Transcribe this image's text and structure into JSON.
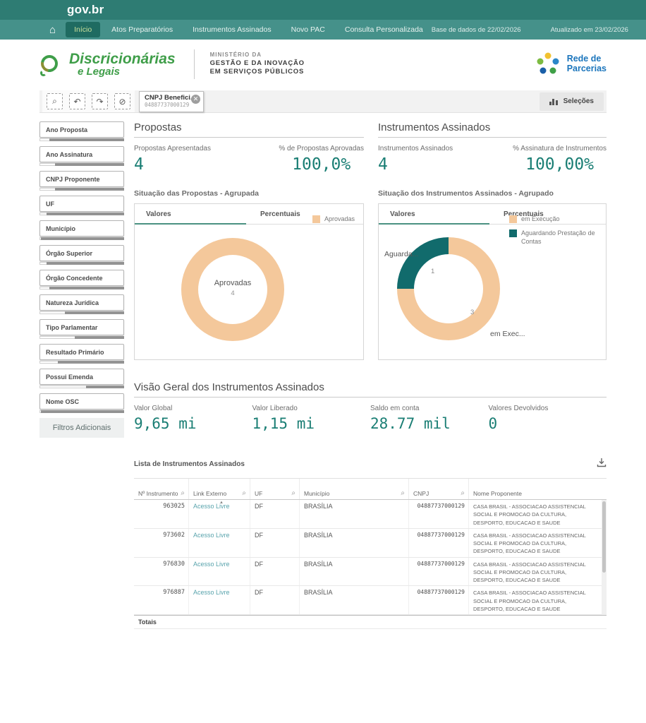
{
  "topbar": {
    "brand": "gov.br",
    "bg": "#2e7c73"
  },
  "navbar": {
    "bg": "#45918a",
    "items": [
      {
        "label": "Início",
        "active": true
      },
      {
        "label": "Atos Preparatórios",
        "active": false
      },
      {
        "label": "Instrumentos Assinados",
        "active": false
      },
      {
        "label": "Novo PAC",
        "active": false
      },
      {
        "label": "Consulta Personalizada",
        "active": false
      }
    ],
    "meta": [
      "Base de dados de 22/02/2026",
      "Atualizado em 23/02/2026"
    ]
  },
  "header": {
    "logo_line1": "Discricionárias",
    "logo_line2": "e Legais",
    "ministry": [
      "MINISTÉRIO DA",
      "GESTÃO E DA INOVAÇÃO",
      "EM SERVIÇOS PÚBLICOS"
    ],
    "partner_line1": "Rede de",
    "partner_line2": "Parcerias"
  },
  "toolbar": {
    "tools": [
      {
        "icon": "search-icon"
      },
      {
        "icon": "step-back-icon"
      },
      {
        "icon": "step-forward-icon"
      },
      {
        "icon": "clear-selections-icon"
      }
    ],
    "chip": {
      "title": "CNPJ Benefici...",
      "value": "04887737000129",
      "close_icon": "close-icon"
    },
    "selections_label": "Seleções"
  },
  "sidebar": {
    "filters": [
      {
        "label": "Ano Proposta",
        "state": 0.12
      },
      {
        "label": "Ano Assinatura",
        "state": 0.18
      },
      {
        "label": "CNPJ Proponente",
        "state": 0.18
      },
      {
        "label": "UF",
        "state": 0.08
      },
      {
        "label": "Município",
        "state": 0.02
      },
      {
        "label": "Órgão Superior",
        "state": 0.08
      },
      {
        "label": "Órgão Concedente",
        "state": 0.12
      },
      {
        "label": "Natureza Jurídica",
        "state": 0.3
      },
      {
        "label": "Tipo Parlamentar",
        "state": 0.42
      },
      {
        "label": "Resultado Primário",
        "state": 0.22
      },
      {
        "label": "Possui Emenda",
        "state": 0.55
      },
      {
        "label": "Nome OSC",
        "state": 0.02
      }
    ],
    "more_button": "Filtros Adicionais"
  },
  "sections": {
    "propostas": {
      "title": "Propostas",
      "kpis": [
        {
          "label": "Propostas Apresentadas",
          "value": "4"
        },
        {
          "label": "% de Propostas Aprovadas",
          "value": "100,0%"
        }
      ]
    },
    "instrumentos": {
      "title": "Instrumentos Assinados",
      "kpis": [
        {
          "label": "Instrumentos Assinados",
          "value": "4"
        },
        {
          "label": "% Assinatura de Instrumentos",
          "value": "100,00%"
        }
      ]
    },
    "visao_geral": {
      "title": "Visão Geral dos Instrumentos Assinados",
      "kpis": [
        {
          "label": "Valor Global",
          "value": "9,65 mi"
        },
        {
          "label": "Valor Liberado",
          "value": "1,15 mi"
        },
        {
          "label": "Saldo em conta",
          "value": "28.77 mil"
        },
        {
          "label": "Valores Devolvidos",
          "value": "0"
        }
      ]
    }
  },
  "charts": [
    {
      "title": "Situação das Propostas - Agrupada",
      "tabs": [
        "Valores",
        "Percentuais"
      ],
      "active_tab": "Valores",
      "center_label": "Aprovadas",
      "center_value": "4"
    },
    {
      "title": "Situação dos Instrumentos Assinados - Agrupado",
      "tabs": [
        "Valores",
        "Percentuais"
      ],
      "active_tab": "Valores",
      "label_left": "Aguarda...",
      "label_right": "em Exec...",
      "value_teal": "1",
      "value_peach": "3"
    }
  ],
  "chart_data": [
    {
      "type": "pie",
      "donut": true,
      "title": "Situação das Propostas - Agrupada",
      "labels": [
        "Aprovadas"
      ],
      "values": [
        4
      ],
      "colors": [
        "#f4c89b"
      ],
      "legend_position": "top-right"
    },
    {
      "type": "pie",
      "donut": true,
      "title": "Situação dos Instrumentos Assinados - Agrupado",
      "labels": [
        "em Execução",
        "Aguardando Prestação de Contas"
      ],
      "values": [
        3,
        1
      ],
      "colors": [
        "#f4c89b",
        "#116b6c"
      ],
      "legend_position": "top-right"
    }
  ],
  "table": {
    "title": "Lista de Instrumentos Assinados",
    "download_icon": "download-icon",
    "columns": [
      {
        "label": "Nº Instrumento",
        "search": true,
        "sorted": false
      },
      {
        "label": "Link Externo",
        "search": true,
        "sorted": true
      },
      {
        "label": "UF",
        "search": true,
        "sorted": false
      },
      {
        "label": "Município",
        "search": true,
        "sorted": false
      },
      {
        "label": "CNPJ",
        "search": true,
        "sorted": false
      },
      {
        "label": "Nome Proponente",
        "search": false,
        "sorted": false
      }
    ],
    "rows": [
      {
        "numero": "963025",
        "link": "Acesso Livre",
        "uf": "DF",
        "municipio": "BRASÍLIA",
        "cnpj": "04887737000129",
        "nome": "CASA BRASIL - ASSOCIACAO ASSISTENCIAL SOCIAL E PROMOCAO DA CULTURA, DESPORTO, EDUCACAO E SAUDE"
      },
      {
        "numero": "973602",
        "link": "Acesso Livre",
        "uf": "DF",
        "municipio": "BRASÍLIA",
        "cnpj": "04887737000129",
        "nome": "CASA BRASIL - ASSOCIACAO ASSISTENCIAL SOCIAL E PROMOCAO DA CULTURA, DESPORTO, EDUCACAO E SAUDE"
      },
      {
        "numero": "976830",
        "link": "Acesso Livre",
        "uf": "DF",
        "municipio": "BRASÍLIA",
        "cnpj": "04887737000129",
        "nome": "CASA BRASIL - ASSOCIACAO ASSISTENCIAL SOCIAL E PROMOCAO DA CULTURA, DESPORTO, EDUCACAO E SAUDE"
      },
      {
        "numero": "976887",
        "link": "Acesso Livre",
        "uf": "DF",
        "municipio": "BRASÍLIA",
        "cnpj": "04887737000129",
        "nome": "CASA BRASIL - ASSOCIACAO ASSISTENCIAL SOCIAL E PROMOCAO DA CULTURA, DESPORTO, EDUCACAO E SAUDE"
      }
    ],
    "totals_label": "Totais"
  },
  "colors": {
    "topbar": "#2e7c73",
    "navbar": "#45918a",
    "nav_active": "#1f6b61",
    "kpi_teal": "#1a7e74",
    "peach": "#f4c89b",
    "teal_slice": "#116b6c",
    "link": "#58a3ac",
    "logo_green": "#3f9e49",
    "partner_blue": "#1b75bc"
  }
}
